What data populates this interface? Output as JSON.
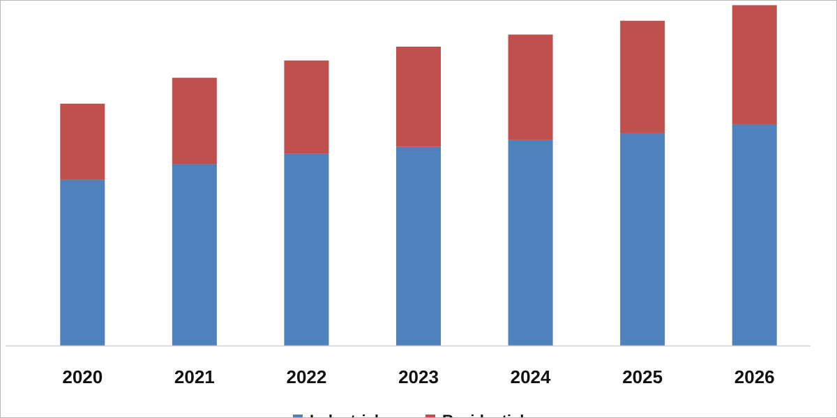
{
  "chart_data": {
    "type": "bar",
    "stacked": true,
    "categories": [
      "2020",
      "2021",
      "2022",
      "2023",
      "2024",
      "2025",
      "2026"
    ],
    "series": [
      {
        "name": "Industrial",
        "color": "#4f81bd",
        "values": [
          48,
          52.5,
          55.5,
          57.5,
          59.5,
          61.5,
          64
        ]
      },
      {
        "name": "Residential",
        "color": "#c0504d",
        "values": [
          22,
          25,
          27,
          29,
          30.5,
          32.5,
          34.5
        ]
      }
    ],
    "ylim": [
      0,
      100
    ],
    "grid": false,
    "legend": "bottom",
    "title": "",
    "xlabel": "",
    "ylabel": ""
  }
}
